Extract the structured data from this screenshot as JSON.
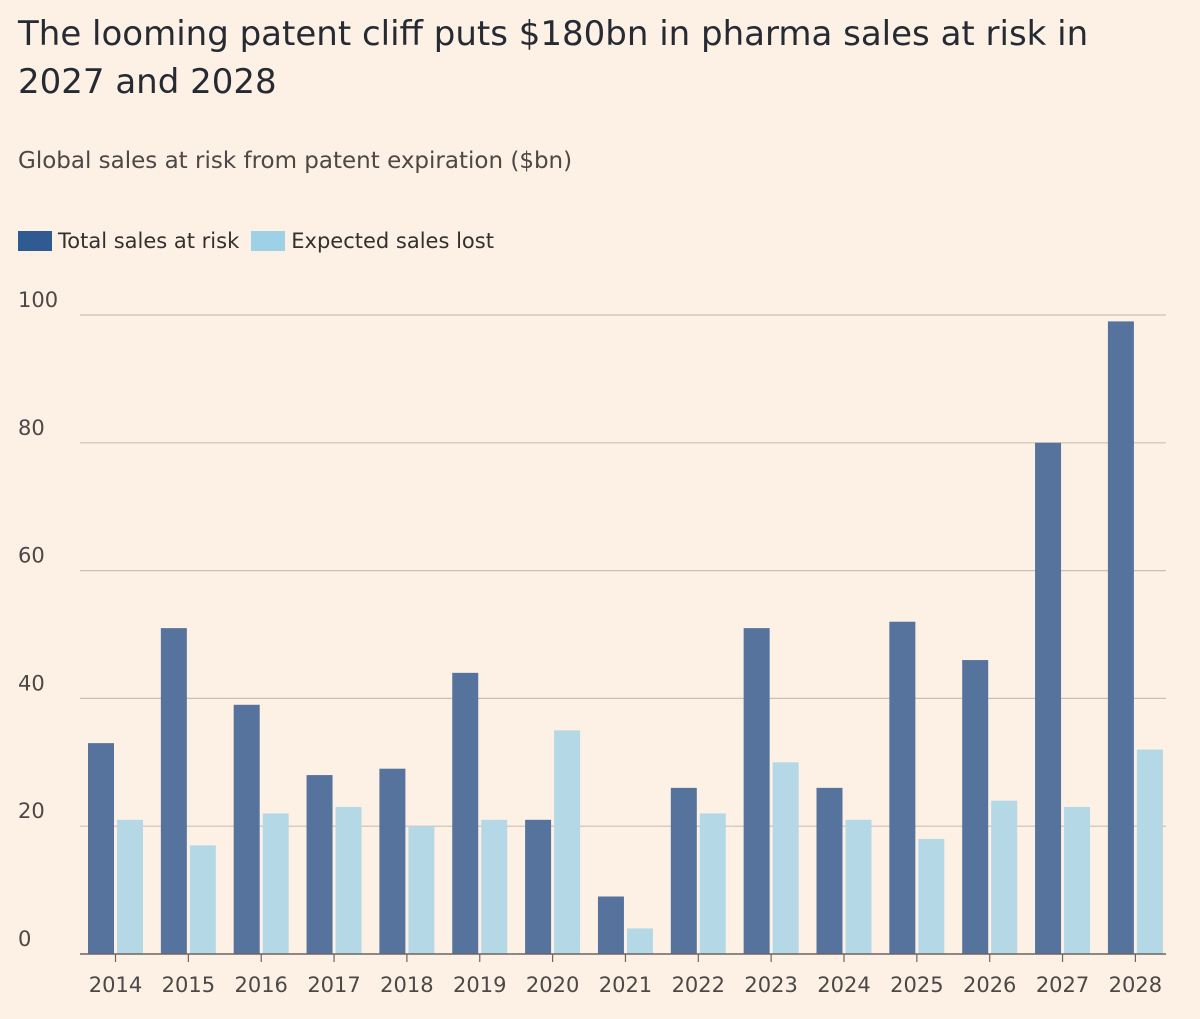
{
  "chart_data": {
    "type": "bar",
    "title": "The looming patent cliff puts $180bn in pharma sales at risk in 2027 and 2028",
    "subtitle": "Global sales at risk from patent expiration ($bn)",
    "xlabel": "",
    "ylabel": "",
    "ylim": [
      0,
      100
    ],
    "yticks": [
      0,
      20,
      40,
      60,
      80,
      100
    ],
    "grid": true,
    "legend_position": "top-left",
    "categories": [
      "2014",
      "2015",
      "2016",
      "2017",
      "2018",
      "2019",
      "2020",
      "2021",
      "2022",
      "2023",
      "2024",
      "2025",
      "2026",
      "2027",
      "2028"
    ],
    "series": [
      {
        "name": "Total sales at risk",
        "color": "#55739c",
        "values": [
          33,
          51,
          39,
          28,
          29,
          44,
          21,
          9,
          26,
          51,
          26,
          52,
          46,
          80,
          99
        ]
      },
      {
        "name": "Expected sales lost",
        "color": "#b5d8e6",
        "values": [
          21,
          17,
          22,
          23,
          20,
          21,
          35,
          4,
          22,
          30,
          21,
          18,
          24,
          23,
          32
        ]
      }
    ],
    "legend_swatch_colors": [
      "#2f5a92",
      "#9ed1e6"
    ],
    "gridline_color": "#c9c0b8",
    "baseline_color": "#6b6561"
  }
}
